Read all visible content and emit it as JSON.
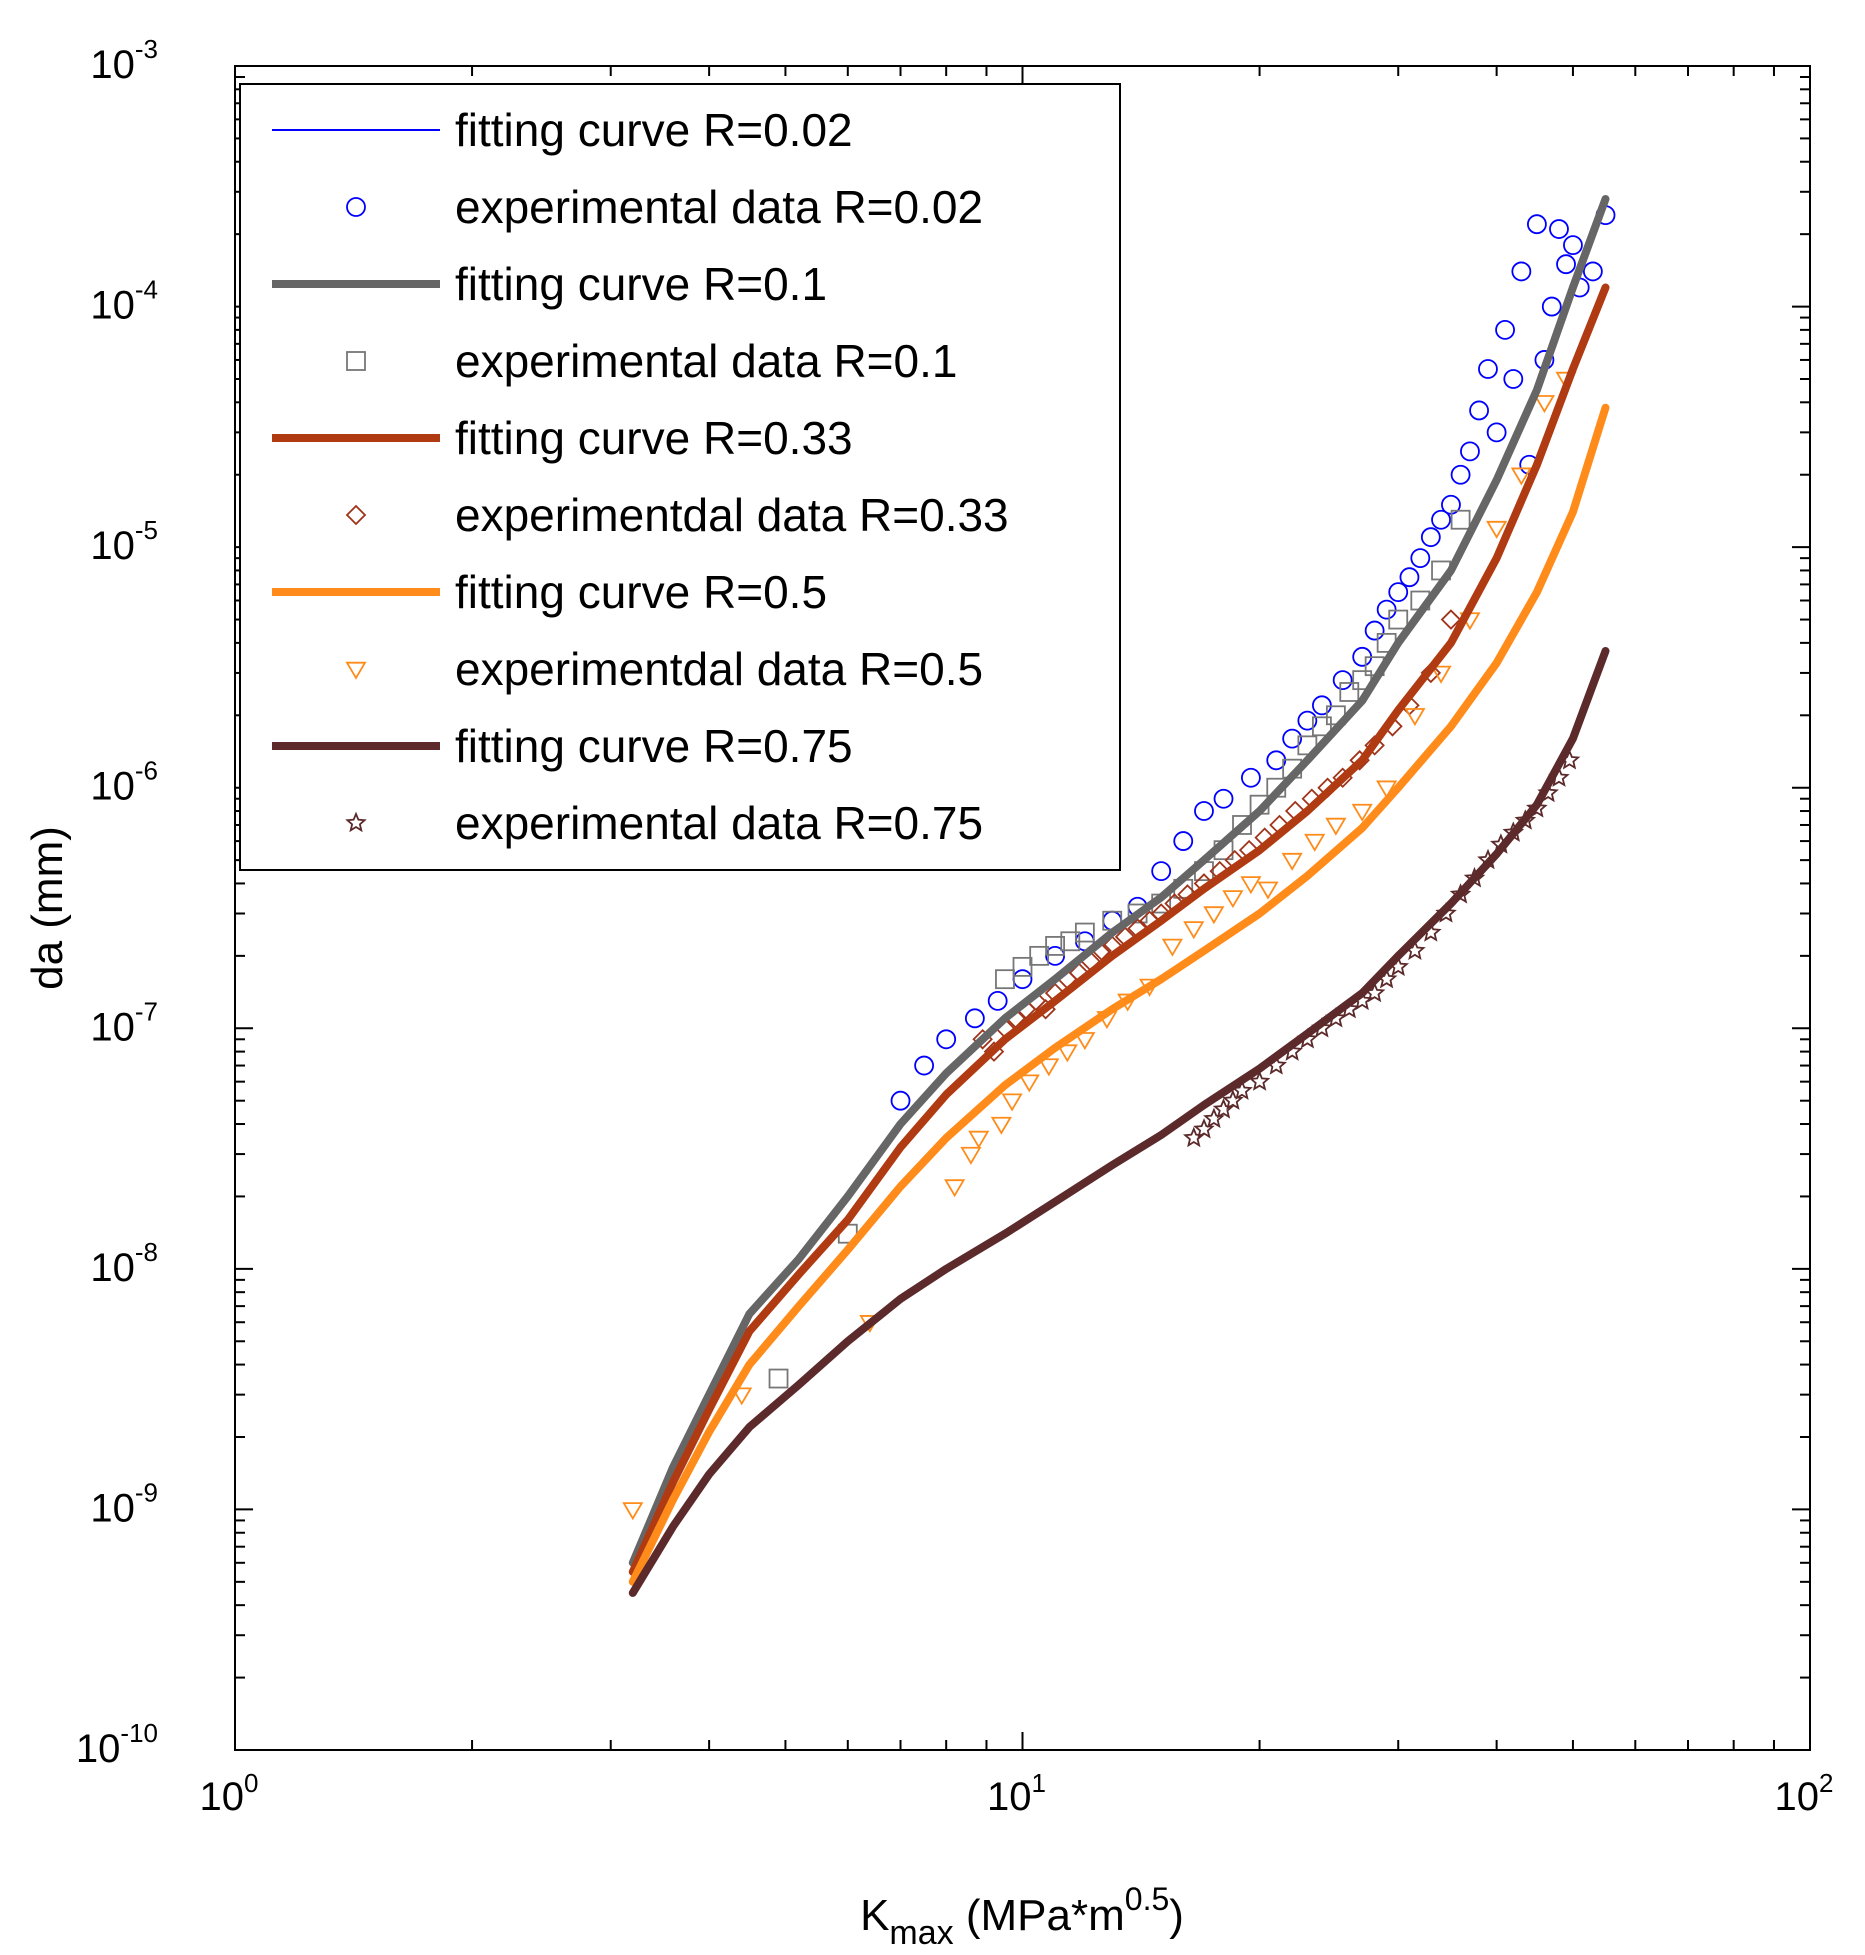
{
  "chart_data": {
    "type": "line",
    "title": "",
    "x_scale": "log",
    "y_scale": "log",
    "xlim": [
      1,
      100
    ],
    "ylim": [
      1e-10,
      0.001
    ],
    "xlabel": {
      "base": "K",
      "subscript": "max",
      "rest": " (MPa*m",
      "superscript": "0.5",
      "close": ")"
    },
    "ylabel": "da (mm)",
    "x_ticks": [
      {
        "base": "10",
        "exp": "0",
        "value": 1
      },
      {
        "base": "10",
        "exp": "1",
        "value": 10
      },
      {
        "base": "10",
        "exp": "2",
        "value": 100
      }
    ],
    "y_ticks": [
      {
        "base": "10",
        "exp": "-10",
        "value": 1e-10
      },
      {
        "base": "10",
        "exp": "-9",
        "value": 1e-09
      },
      {
        "base": "10",
        "exp": "-8",
        "value": 1e-08
      },
      {
        "base": "10",
        "exp": "-7",
        "value": 1e-07
      },
      {
        "base": "10",
        "exp": "-6",
        "value": 1e-06
      },
      {
        "base": "10",
        "exp": "-5",
        "value": 1e-05
      },
      {
        "base": "10",
        "exp": "-4",
        "value": 0.0001
      },
      {
        "base": "10",
        "exp": "-3",
        "value": 0.001
      }
    ],
    "legend_position": "top-left",
    "series": [
      {
        "name": "fitting curve R=0.02",
        "kind": "line",
        "color": "#0000ff",
        "thin": true,
        "x": [
          3.2,
          3.6,
          4.0,
          4.5,
          5.2,
          6.0,
          7.0,
          8.0,
          9.5,
          11,
          13,
          15,
          17,
          20,
          23,
          27,
          30,
          35,
          40,
          45,
          50,
          55
        ],
        "y": [
          6e-10,
          1.5e-09,
          3e-09,
          6.5e-09,
          1.1e-08,
          2e-08,
          4e-08,
          6.5e-08,
          1.1e-07,
          1.6e-07,
          2.5e-07,
          3.5e-07,
          5e-07,
          8e-07,
          1.3e-06,
          2.3e-06,
          4e-06,
          8e-06,
          1.9e-05,
          4.5e-05,
          0.00012,
          0.00028
        ]
      },
      {
        "name": "experimental data R=0.02",
        "kind": "scatter",
        "marker": "circle",
        "color": "#0000ff",
        "x": [
          7.0,
          7.5,
          8.0,
          8.7,
          9.3,
          10,
          11,
          12,
          13,
          14,
          15,
          16,
          17,
          18,
          19.5,
          21,
          22,
          23,
          24,
          25.5,
          27,
          28,
          29,
          30,
          31,
          32,
          33,
          34,
          35,
          36,
          37,
          38,
          39,
          40,
          41,
          42,
          43,
          44,
          45,
          46,
          47,
          48,
          49,
          50,
          51,
          53,
          55
        ],
        "y": [
          5e-08,
          7e-08,
          9e-08,
          1.1e-07,
          1.3e-07,
          1.6e-07,
          2e-07,
          2.3e-07,
          2.8e-07,
          3.2e-07,
          4.5e-07,
          6e-07,
          8e-07,
          9e-07,
          1.1e-06,
          1.3e-06,
          1.6e-06,
          1.9e-06,
          2.2e-06,
          2.8e-06,
          3.5e-06,
          4.5e-06,
          5.5e-06,
          6.5e-06,
          7.5e-06,
          9e-06,
          1.1e-05,
          1.3e-05,
          1.5e-05,
          2e-05,
          2.5e-05,
          3.7e-05,
          5.5e-05,
          3e-05,
          8e-05,
          5e-05,
          0.00014,
          2.2e-05,
          0.00022,
          6e-05,
          0.0001,
          0.00021,
          0.00015,
          0.00018,
          0.00012,
          0.00014,
          0.00024
        ]
      },
      {
        "name": "fitting curve R=0.1",
        "kind": "line",
        "color": "#666666",
        "x": [
          3.2,
          3.6,
          4.0,
          4.5,
          5.2,
          6.0,
          7.0,
          8.0,
          9.5,
          11,
          13,
          15,
          17,
          20,
          23,
          27,
          30,
          35,
          40,
          45,
          50,
          55
        ],
        "y": [
          6e-10,
          1.5e-09,
          3e-09,
          6.5e-09,
          1.1e-08,
          2e-08,
          4e-08,
          6.5e-08,
          1.1e-07,
          1.6e-07,
          2.5e-07,
          3.5e-07,
          5e-07,
          8e-07,
          1.3e-06,
          2.3e-06,
          4e-06,
          8e-06,
          1.9e-05,
          4.5e-05,
          0.00012,
          0.00028
        ]
      },
      {
        "name": "experimental data R=0.1",
        "kind": "scatter",
        "marker": "square",
        "color": "#777777",
        "x": [
          4.9,
          6.0,
          9.5,
          10,
          10.5,
          11,
          11.5,
          12,
          13,
          14,
          15,
          16,
          17,
          18,
          19,
          20,
          21,
          22,
          23,
          24,
          25,
          26,
          27,
          28,
          29,
          30,
          32,
          34,
          36
        ],
        "y": [
          3.5e-09,
          1.4e-08,
          1.6e-07,
          1.8e-07,
          2e-07,
          2.2e-07,
          2.3e-07,
          2.5e-07,
          2.8e-07,
          3e-07,
          3.3e-07,
          3.8e-07,
          4.5e-07,
          5.5e-07,
          7e-07,
          8.5e-07,
          1e-06,
          1.2e-06,
          1.5e-06,
          1.8e-06,
          2e-06,
          2.5e-06,
          2.8e-06,
          3.2e-06,
          4e-06,
          5e-06,
          6e-06,
          8e-06,
          1.3e-05
        ]
      },
      {
        "name": "fitting curve R=0.33",
        "kind": "line",
        "color": "#b03a12",
        "x": [
          3.2,
          3.6,
          4.0,
          4.5,
          5.2,
          6.0,
          7.0,
          8.0,
          9.5,
          11,
          13,
          15,
          17,
          20,
          23,
          27,
          30,
          35,
          40,
          45,
          50,
          55
        ],
        "y": [
          5.5e-10,
          1.3e-09,
          2.6e-09,
          5.5e-09,
          9.5e-09,
          1.6e-08,
          3.2e-08,
          5.3e-08,
          9e-08,
          1.3e-07,
          2e-07,
          2.8e-07,
          3.8e-07,
          5.5e-07,
          8e-07,
          1.3e-06,
          2.1e-06,
          4e-06,
          9e-06,
          2.2e-05,
          5.5e-05,
          0.00012
        ]
      },
      {
        "name": "experimentdal data R=0.33",
        "kind": "scatter",
        "marker": "diamond",
        "color": "#a0341a",
        "x": [
          8.9,
          9.2,
          9.5,
          9.8,
          10.1,
          10.4,
          10.7,
          11,
          11.4,
          11.8,
          12.2,
          12.6,
          13,
          13.5,
          14,
          14.5,
          15,
          15.6,
          16.2,
          17,
          17.8,
          18.6,
          19.4,
          20.3,
          21.2,
          22.2,
          23.3,
          24.4,
          25.5,
          26.8,
          28,
          29.5,
          31,
          33,
          35
        ],
        "y": [
          9e-08,
          8e-08,
          1e-07,
          1.1e-07,
          1.2e-07,
          1.3e-07,
          1.2e-07,
          1.4e-07,
          1.6e-07,
          1.7e-07,
          1.9e-07,
          2.1e-07,
          2.2e-07,
          2.4e-07,
          2.6e-07,
          2.8e-07,
          3e-07,
          3.3e-07,
          3.6e-07,
          4e-07,
          4.5e-07,
          5e-07,
          5.5e-07,
          6.2e-07,
          7e-07,
          8e-07,
          9e-07,
          1e-06,
          1.1e-06,
          1.3e-06,
          1.5e-06,
          1.8e-06,
          2.2e-06,
          3e-06,
          5e-06
        ]
      },
      {
        "name": "fitting curve R=0.5",
        "kind": "line",
        "color": "#ff8c1a",
        "x": [
          3.2,
          3.6,
          4.0,
          4.5,
          5.2,
          6.0,
          7.0,
          8.0,
          9.5,
          11,
          13,
          15,
          17,
          20,
          23,
          27,
          30,
          35,
          40,
          45,
          50,
          55
        ],
        "y": [
          5e-10,
          1.1e-09,
          2.1e-09,
          4e-09,
          7e-09,
          1.2e-08,
          2.2e-08,
          3.5e-08,
          5.8e-08,
          8.3e-08,
          1.2e-07,
          1.6e-07,
          2.1e-07,
          3e-07,
          4.3e-07,
          6.8e-07,
          1e-06,
          1.8e-06,
          3.3e-06,
          6.5e-06,
          1.4e-05,
          3.8e-05
        ]
      },
      {
        "name": "experimentdal data R=0.5",
        "kind": "scatter",
        "marker": "triangle-down",
        "color": "#ff8c1a",
        "x": [
          3.2,
          4.4,
          6.4,
          8.2,
          8.6,
          8.8,
          9.4,
          9.7,
          10.2,
          10.8,
          11.4,
          12,
          12.8,
          13.6,
          14.5,
          15.5,
          16.5,
          17.5,
          18.5,
          19.5,
          20.5,
          22,
          23.5,
          25,
          27,
          29,
          31.5,
          34,
          37,
          40,
          43,
          46,
          49
        ],
        "y": [
          1e-09,
          3e-09,
          6e-09,
          2.2e-08,
          3e-08,
          3.5e-08,
          4e-08,
          5e-08,
          6e-08,
          7e-08,
          8e-08,
          9e-08,
          1.1e-07,
          1.3e-07,
          1.5e-07,
          2.2e-07,
          2.6e-07,
          3e-07,
          3.5e-07,
          4e-07,
          3.8e-07,
          5e-07,
          6e-07,
          7e-07,
          8e-07,
          1e-06,
          2e-06,
          3e-06,
          5e-06,
          1.2e-05,
          2e-05,
          4e-05,
          5e-05
        ]
      },
      {
        "name": "fitting curve R=0.75",
        "kind": "line",
        "color": "#5c2a2a",
        "x": [
          3.2,
          3.6,
          4.0,
          4.5,
          5.2,
          6.0,
          7.0,
          8.0,
          9.5,
          11,
          13,
          15,
          17,
          20,
          23,
          27,
          30,
          35,
          40,
          45,
          50,
          55
        ],
        "y": [
          4.5e-10,
          8.5e-10,
          1.4e-09,
          2.2e-09,
          3.3e-09,
          5e-09,
          7.5e-09,
          1e-08,
          1.4e-08,
          1.9e-08,
          2.7e-08,
          3.6e-08,
          4.8e-08,
          6.8e-08,
          9.5e-08,
          1.4e-07,
          2e-07,
          3.3e-07,
          5.3e-07,
          8.5e-07,
          1.6e-06,
          3.7e-06
        ]
      },
      {
        "name": "experimental data R=0.75",
        "kind": "scatter",
        "marker": "star",
        "color": "#5c2a2a",
        "x": [
          16.5,
          17,
          17.5,
          18,
          18.5,
          19,
          20,
          21,
          22,
          23,
          24,
          25,
          26,
          27,
          28,
          29,
          30,
          31.5,
          33,
          34.5,
          36,
          37.5,
          39,
          40.5,
          42,
          43.5,
          45,
          46.5,
          48,
          49.5
        ],
        "y": [
          3.5e-08,
          3.8e-08,
          4.2e-08,
          4.6e-08,
          5e-08,
          5.5e-08,
          6e-08,
          7e-08,
          8e-08,
          9e-08,
          1e-07,
          1.1e-07,
          1.2e-07,
          1.3e-07,
          1.4e-07,
          1.6e-07,
          1.8e-07,
          2.1e-07,
          2.5e-07,
          3e-07,
          3.6e-07,
          4.2e-07,
          5e-07,
          5.8e-07,
          6.5e-07,
          7.3e-07,
          8.2e-07,
          9.5e-07,
          1.1e-06,
          1.3e-06
        ]
      }
    ]
  }
}
